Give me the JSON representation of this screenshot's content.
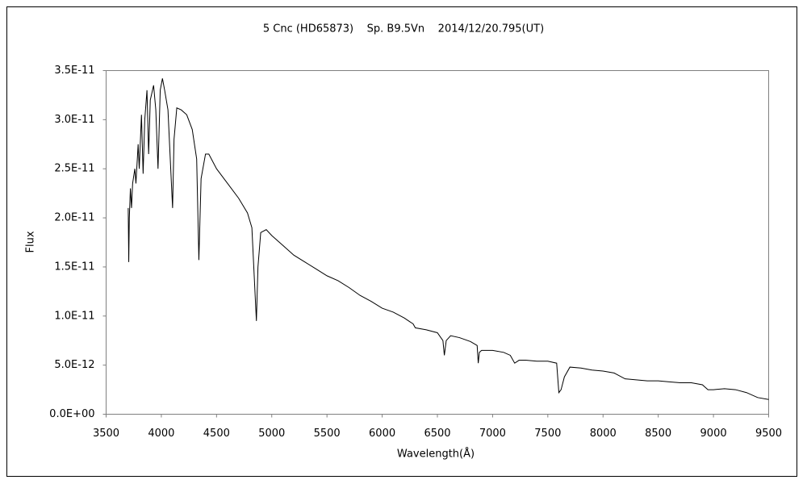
{
  "chart_data": {
    "type": "line",
    "title": "5 Cnc (HD65873)    Sp. B9.5Vn    2014/12/20.795(UT)",
    "x_label": "Wavelength(Å)",
    "y_label": "Flux",
    "xlim": [
      3500,
      9500
    ],
    "xticks": [
      3500,
      4000,
      4500,
      5000,
      5500,
      6000,
      6500,
      7000,
      7500,
      8000,
      8500,
      9000,
      9500
    ],
    "ylim": [
      0,
      3.5e-11
    ],
    "yticks": [
      {
        "value": 0,
        "label": "0.0E+00"
      },
      {
        "value": 5e-12,
        "label": "5.0E-12"
      },
      {
        "value": 1e-11,
        "label": "1.0E-11"
      },
      {
        "value": 1.5e-11,
        "label": "1.5E-11"
      },
      {
        "value": 2e-11,
        "label": "2.0E-11"
      },
      {
        "value": 2.5e-11,
        "label": "2.5E-11"
      },
      {
        "value": 3e-11,
        "label": "3.0E-11"
      },
      {
        "value": 3.5e-11,
        "label": "3.5E-11"
      }
    ],
    "grid": false,
    "series": [
      {
        "name": "Flux",
        "color": "#000000",
        "x": [
          3700,
          3705,
          3710,
          3720,
          3730,
          3740,
          3760,
          3770,
          3790,
          3800,
          3820,
          3835,
          3850,
          3870,
          3885,
          3900,
          3930,
          3950,
          3970,
          3990,
          4010,
          4030,
          4060,
          4085,
          4102,
          4115,
          4140,
          4180,
          4230,
          4280,
          4320,
          4340,
          4360,
          4400,
          4430,
          4500,
          4600,
          4700,
          4780,
          4820,
          4850,
          4861,
          4875,
          4900,
          4950,
          5000,
          5100,
          5200,
          5300,
          5400,
          5500,
          5600,
          5700,
          5800,
          5900,
          6000,
          6100,
          6200,
          6280,
          6300,
          6400,
          6500,
          6550,
          6563,
          6580,
          6620,
          6700,
          6800,
          6860,
          6870,
          6880,
          6900,
          7000,
          7100,
          7160,
          7200,
          7240,
          7300,
          7400,
          7500,
          7580,
          7600,
          7620,
          7650,
          7700,
          7800,
          7900,
          8000,
          8100,
          8200,
          8300,
          8400,
          8500,
          8600,
          8700,
          8800,
          8900,
          8950,
          9000,
          9100,
          9200,
          9300,
          9400,
          9500
        ],
        "values": [
          2.1e-11,
          1.55e-11,
          2e-11,
          2.3e-11,
          2.1e-11,
          2.35e-11,
          2.5e-11,
          2.35e-11,
          2.75e-11,
          2.5e-11,
          3.05e-11,
          2.45e-11,
          3e-11,
          3.3e-11,
          2.65e-11,
          3.2e-11,
          3.35e-11,
          3.1e-11,
          2.5e-11,
          3.3e-11,
          3.42e-11,
          3.3e-11,
          3.1e-11,
          2.5e-11,
          2.1e-11,
          2.8e-11,
          3.12e-11,
          3.1e-11,
          3.05e-11,
          2.9e-11,
          2.6e-11,
          1.57e-11,
          2.4e-11,
          2.65e-11,
          2.65e-11,
          2.5e-11,
          2.35e-11,
          2.2e-11,
          2.05e-11,
          1.9e-11,
          1.2e-11,
          9.5e-12,
          1.5e-11,
          1.85e-11,
          1.88e-11,
          1.82e-11,
          1.72e-11,
          1.62e-11,
          1.55e-11,
          1.48e-11,
          1.41e-11,
          1.36e-11,
          1.29e-11,
          1.21e-11,
          1.15e-11,
          1.08e-11,
          1.04e-11,
          9.8e-12,
          9.2e-12,
          8.8e-12,
          8.6e-12,
          8.3e-12,
          7.5e-12,
          6e-12,
          7.5e-12,
          8e-12,
          7.8e-12,
          7.4e-12,
          7e-12,
          5.2e-12,
          6.3e-12,
          6.5e-12,
          6.5e-12,
          6.3e-12,
          6e-12,
          5.2e-12,
          5.5e-12,
          5.5e-12,
          5.4e-12,
          5.4e-12,
          5.2e-12,
          2.2e-12,
          2.5e-12,
          3.8e-12,
          4.8e-12,
          4.7e-12,
          4.5e-12,
          4.4e-12,
          4.2e-12,
          3.6e-12,
          3.5e-12,
          3.4e-12,
          3.4e-12,
          3.3e-12,
          3.2e-12,
          3.2e-12,
          3e-12,
          2.5e-12,
          2.5e-12,
          2.6e-12,
          2.5e-12,
          2.2e-12,
          1.7e-12,
          1.5e-12
        ]
      }
    ]
  }
}
